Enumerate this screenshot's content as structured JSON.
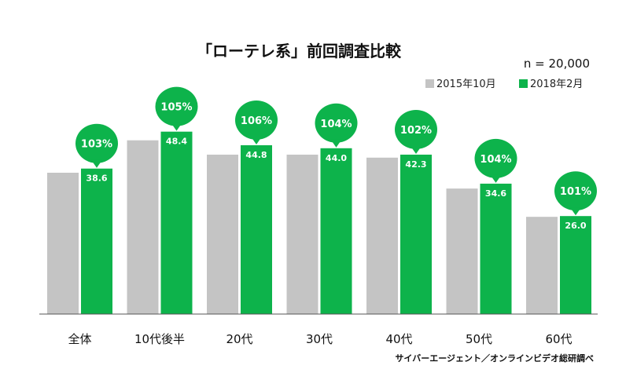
{
  "title": "「ローテレ系」前回調査比較",
  "sample_size": "n = 20,000",
  "source": "サイバーエージェント／オンラインビデオ総研調べ",
  "colors": {
    "series_2015": "#c4c4c4",
    "series_2018": "#0db34b",
    "axis": "#555555"
  },
  "chart_data": {
    "type": "bar",
    "title": "「ローテレ系」前回調査比較",
    "xlabel": "",
    "ylabel": "",
    "ylim": [
      0,
      60
    ],
    "grid": false,
    "legend_position": "top-right",
    "categories": [
      "全体",
      "10代後半",
      "20代",
      "30代",
      "40代",
      "50代",
      "60代"
    ],
    "series": [
      {
        "name": "2015年10月",
        "values": [
          37.5,
          46.1,
          42.3,
          42.3,
          41.5,
          33.3,
          25.8
        ]
      },
      {
        "name": "2018年2月",
        "values": [
          38.6,
          48.4,
          44.8,
          44.0,
          42.3,
          34.6,
          26.0
        ]
      }
    ],
    "value_labels": [
      "38.6",
      "48.4",
      "44.8",
      "44.0",
      "42.3",
      "34.6",
      "26.0"
    ],
    "comparison_labels": [
      "103%",
      "105%",
      "106%",
      "104%",
      "102%",
      "104%",
      "101%"
    ]
  }
}
